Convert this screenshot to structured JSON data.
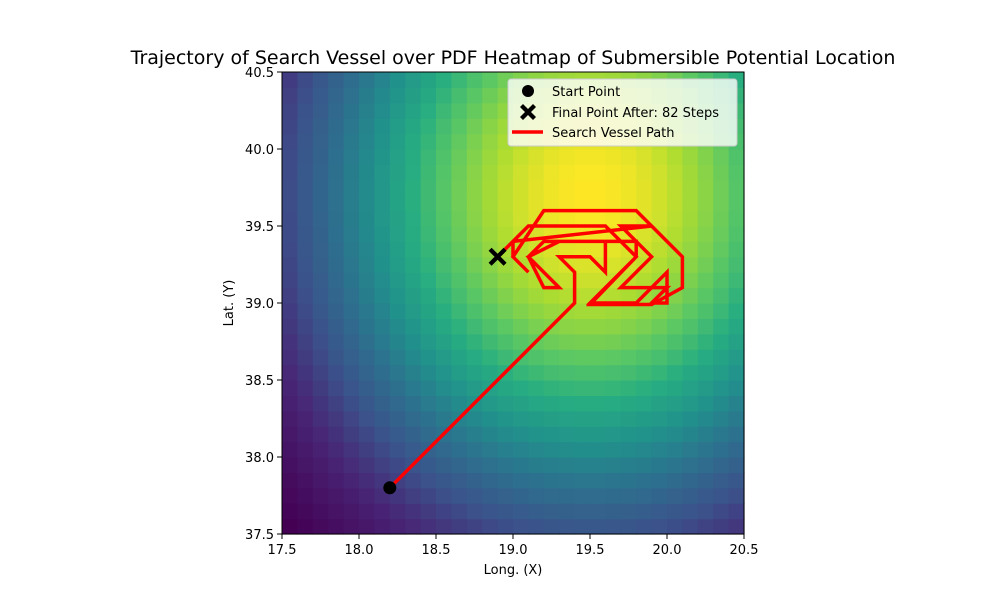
{
  "chart_data": {
    "type": "heatmap",
    "title": "Trajectory of Search Vessel over PDF Heatmap of Submersible Potential Location",
    "xlabel": "Long. (X)",
    "ylabel": "Lat. (Y)",
    "xlim": [
      17.5,
      20.5
    ],
    "ylim": [
      37.5,
      40.5
    ],
    "xticks": [
      "17.5",
      "18.0",
      "18.5",
      "19.0",
      "19.5",
      "20.0",
      "20.5"
    ],
    "yticks": [
      "37.5",
      "38.0",
      "38.5",
      "39.0",
      "39.5",
      "40.0",
      "40.5"
    ],
    "grid": false,
    "legend_position": "upper-right",
    "colormap": "viridis",
    "heatmap": {
      "grid_size": 30,
      "peak_x": 19.5,
      "peak_y": 39.7,
      "spread_x": 1.3,
      "spread_y": 1.5
    },
    "series": [
      {
        "name": "Search Vessel Path",
        "color": "#ff0000",
        "points": [
          [
            18.2,
            37.8
          ],
          [
            19.4,
            39.0
          ],
          [
            19.4,
            39.2
          ],
          [
            19.3,
            39.3
          ],
          [
            19.5,
            39.3
          ],
          [
            19.6,
            39.2
          ],
          [
            19.6,
            39.4
          ],
          [
            19.2,
            39.4
          ],
          [
            19.1,
            39.3
          ],
          [
            19.2,
            39.1
          ],
          [
            19.3,
            39.1
          ],
          [
            19.1,
            39.3
          ],
          [
            19.3,
            39.4
          ],
          [
            19.8,
            39.4
          ],
          [
            19.8,
            39.3
          ],
          [
            19.5,
            39.0
          ],
          [
            19.8,
            39.0
          ],
          [
            20.0,
            39.2
          ],
          [
            20.0,
            39.0
          ],
          [
            19.9,
            39.0
          ],
          [
            20.0,
            39.1
          ],
          [
            19.7,
            39.1
          ],
          [
            19.9,
            39.3
          ],
          [
            19.7,
            39.5
          ],
          [
            19.9,
            39.5
          ],
          [
            20.1,
            39.3
          ],
          [
            20.1,
            39.1
          ],
          [
            19.9,
            38.99
          ],
          [
            19.5,
            38.99
          ],
          [
            19.8,
            39.3
          ],
          [
            19.6,
            39.5
          ],
          [
            19.1,
            39.5
          ],
          [
            19.0,
            39.4
          ],
          [
            19.0,
            39.3
          ],
          [
            19.1,
            39.2
          ],
          [
            19.0,
            39.3
          ],
          [
            19.2,
            39.6
          ],
          [
            19.8,
            39.6
          ],
          [
            19.9,
            39.5
          ],
          [
            19.0,
            39.4
          ],
          [
            18.9,
            39.3
          ]
        ]
      }
    ],
    "start_point": {
      "name": "Start Point",
      "x": 18.2,
      "y": 37.8,
      "color": "#000000"
    },
    "final_point": {
      "name": "Final Point After: 82 Steps",
      "x": 18.9,
      "y": 39.3,
      "color": "#000000"
    }
  }
}
